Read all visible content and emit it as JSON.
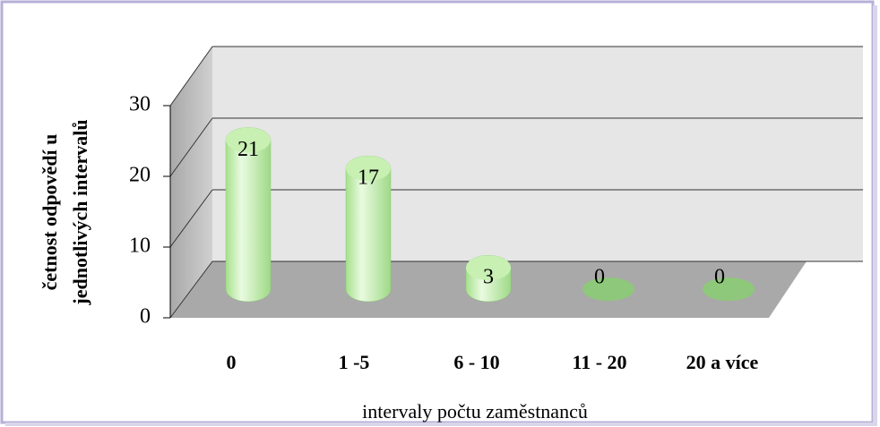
{
  "chart_data": {
    "type": "bar3d",
    "categories": [
      "0",
      "1 -5",
      "6 - 10",
      "11 - 20",
      "20 a více"
    ],
    "values": [
      21,
      17,
      3,
      0,
      0
    ],
    "color": "#b8eaa0",
    "ylim": [
      0,
      30
    ],
    "yticks": [
      0,
      10,
      20,
      30
    ],
    "grid": true,
    "x_label": "intervaly počtu zaměstnanců",
    "y_label": [
      "četnost odpovědí u",
      "jednotlivých intervalů"
    ]
  }
}
